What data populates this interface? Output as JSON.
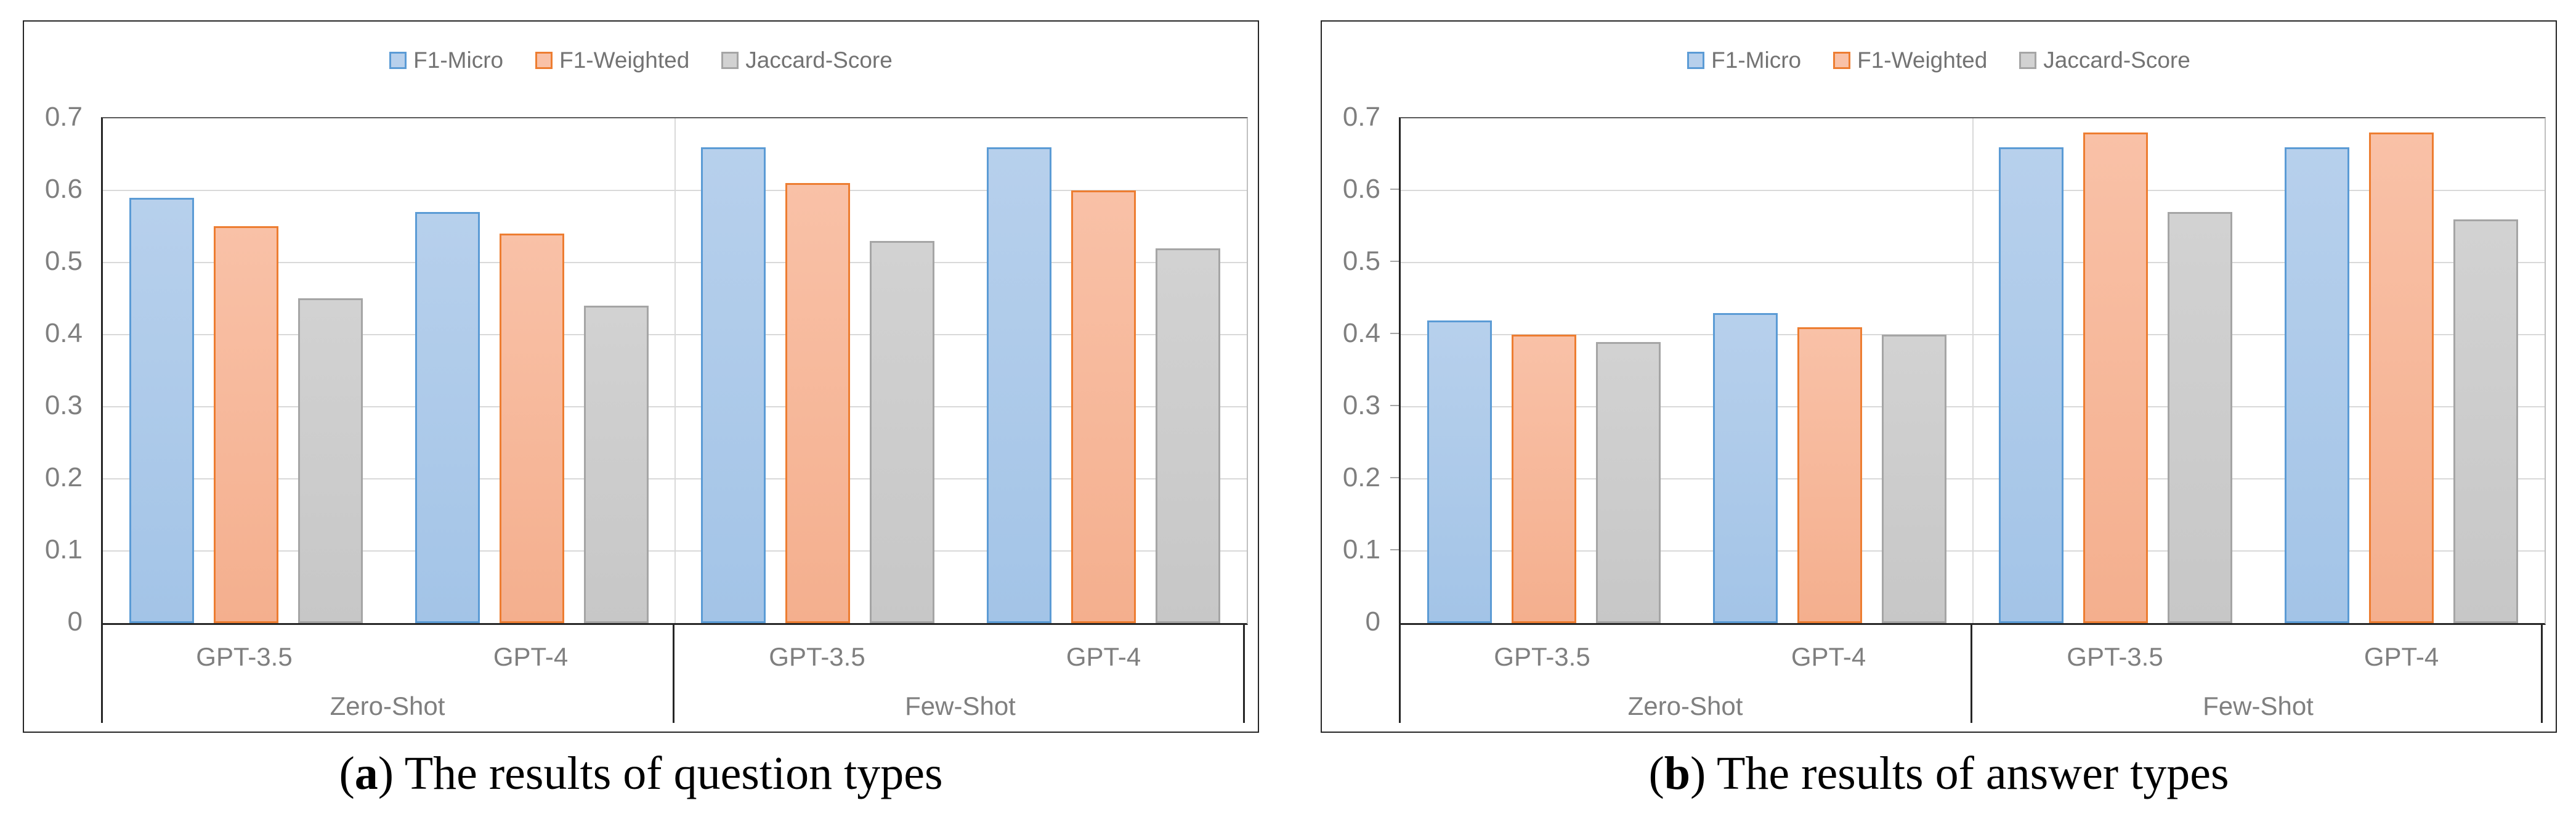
{
  "chart_data": [
    {
      "type": "bar",
      "panel": "a",
      "caption": {
        "open_paren": "(",
        "marker": "a",
        "close_paren": ")",
        "text": " The results of question types"
      },
      "legend_position": "top",
      "grid": true,
      "ylim": [
        0,
        0.7
      ],
      "ytick_labels": [
        "0.7",
        "0.6",
        "0.5",
        "0.4",
        "0.3",
        "0.2",
        "0.1",
        "0"
      ],
      "categories": [
        "GPT-3.5",
        "GPT-4",
        "GPT-3.5",
        "GPT-4"
      ],
      "group_labels": [
        "Zero-Shot",
        "Few-Shot"
      ],
      "series": [
        {
          "name": "F1-Micro",
          "border": "#5B9BD5",
          "fill": "#B7D0EC",
          "fill2": "#A3C4E7",
          "values": [
            0.59,
            0.57,
            0.66,
            0.66
          ]
        },
        {
          "name": "F1-Weighted",
          "border": "#ED7D31",
          "fill": "#F9C1A7",
          "fill2": "#F4AF8E",
          "values": [
            0.55,
            0.54,
            0.61,
            0.6
          ]
        },
        {
          "name": "Jaccard-Score",
          "border": "#A5A5A5",
          "fill": "#D2D2D2",
          "fill2": "#C7C7C7",
          "values": [
            0.45,
            0.44,
            0.53,
            0.52
          ]
        }
      ],
      "ticks_outside": false
    },
    {
      "type": "bar",
      "panel": "b",
      "caption": {
        "open_paren": "(",
        "marker": "b",
        "close_paren": ")",
        "text": " The results of answer types"
      },
      "legend_position": "top",
      "grid": true,
      "ylim": [
        0,
        0.7
      ],
      "ytick_labels": [
        "0.7",
        "0.6",
        "0.5",
        "0.4",
        "0.3",
        "0.2",
        "0.1",
        "0"
      ],
      "categories": [
        "GPT-3.5",
        "GPT-4",
        "GPT-3.5",
        "GPT-4"
      ],
      "group_labels": [
        "Zero-Shot",
        "Few-Shot"
      ],
      "series": [
        {
          "name": "F1-Micro",
          "border": "#5B9BD5",
          "fill": "#B7D0EC",
          "fill2": "#A3C4E7",
          "values": [
            0.42,
            0.43,
            0.66,
            0.66
          ]
        },
        {
          "name": "F1-Weighted",
          "border": "#ED7D31",
          "fill": "#F9C1A7",
          "fill2": "#F4AF8E",
          "values": [
            0.4,
            0.41,
            0.68,
            0.68
          ]
        },
        {
          "name": "Jaccard-Score",
          "border": "#A5A5A5",
          "fill": "#D2D2D2",
          "fill2": "#C7C7C7",
          "values": [
            0.39,
            0.4,
            0.57,
            0.56
          ]
        }
      ],
      "ticks_outside": true
    }
  ],
  "style": {
    "axis_text_color": "#7F7F7F",
    "legend_text_color": "#737373",
    "gridline_color": "#D9D9D9",
    "axis_line_color": "#262626"
  }
}
